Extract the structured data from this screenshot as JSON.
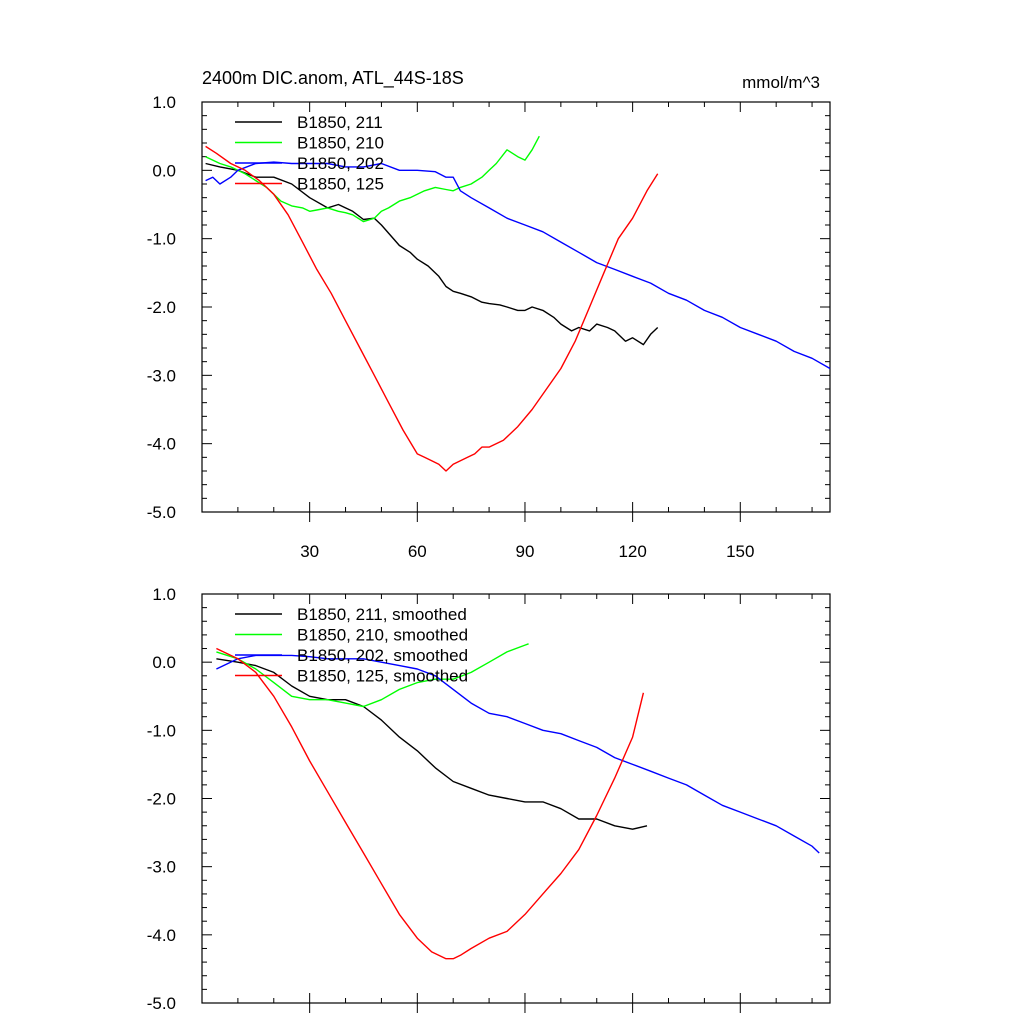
{
  "chart_data": [
    {
      "type": "line",
      "title": "2400m DIC.anom, ATL_44S-18S",
      "units_label": "mmol/m^3",
      "xlabel": "",
      "ylabel": "",
      "xlim": [
        0,
        175
      ],
      "ylim": [
        -5.0,
        1.0
      ],
      "x_ticks": [
        30,
        60,
        90,
        120,
        150
      ],
      "x_tick_labels": [
        "30",
        "60",
        "90",
        "120",
        "150"
      ],
      "show_x_tick_labels": true,
      "y_ticks": [
        -5.0,
        -4.0,
        -3.0,
        -2.0,
        -1.0,
        0.0,
        1.0
      ],
      "y_tick_labels": [
        "-5.0",
        "-4.0",
        "-3.0",
        "-2.0",
        "-1.0",
        "0.0",
        "1.0"
      ],
      "legend_position": "top-left",
      "series": [
        {
          "name": "B1850, 211",
          "color": "#000000",
          "x": [
            1,
            5,
            10,
            15,
            20,
            25,
            30,
            35,
            38,
            40,
            42,
            45,
            48,
            50,
            55,
            58,
            60,
            63,
            66,
            68,
            70,
            72,
            75,
            78,
            80,
            83,
            85,
            88,
            90,
            92,
            95,
            98,
            100,
            103,
            105,
            108,
            110,
            113,
            115,
            118,
            120,
            123,
            125,
            127
          ],
          "y": [
            0.1,
            0.05,
            0.0,
            -0.1,
            -0.1,
            -0.2,
            -0.4,
            -0.55,
            -0.5,
            -0.55,
            -0.6,
            -0.72,
            -0.7,
            -0.8,
            -1.1,
            -1.2,
            -1.3,
            -1.4,
            -1.55,
            -1.7,
            -1.77,
            -1.8,
            -1.85,
            -1.93,
            -1.95,
            -1.97,
            -2.0,
            -2.05,
            -2.05,
            -2.0,
            -2.05,
            -2.15,
            -2.25,
            -2.35,
            -2.3,
            -2.35,
            -2.25,
            -2.3,
            -2.35,
            -2.5,
            -2.45,
            -2.55,
            -2.4,
            -2.3
          ]
        },
        {
          "name": "B1850, 210",
          "color": "#00ff00",
          "x": [
            1,
            5,
            8,
            10,
            12,
            15,
            18,
            20,
            22,
            25,
            28,
            30,
            32,
            35,
            38,
            40,
            42,
            45,
            48,
            50,
            52,
            55,
            58,
            60,
            62,
            65,
            68,
            70,
            72,
            75,
            78,
            80,
            82,
            85,
            88,
            90,
            92,
            94
          ],
          "y": [
            0.2,
            0.1,
            0.05,
            0.0,
            -0.05,
            -0.15,
            -0.25,
            -0.35,
            -0.45,
            -0.52,
            -0.55,
            -0.6,
            -0.58,
            -0.55,
            -0.6,
            -0.62,
            -0.65,
            -0.75,
            -0.7,
            -0.6,
            -0.55,
            -0.45,
            -0.4,
            -0.35,
            -0.3,
            -0.25,
            -0.28,
            -0.3,
            -0.25,
            -0.2,
            -0.1,
            0.0,
            0.1,
            0.3,
            0.2,
            0.15,
            0.3,
            0.5
          ]
        },
        {
          "name": "B1850, 202",
          "color": "#0000ff",
          "x": [
            1,
            3,
            5,
            8,
            10,
            15,
            20,
            25,
            30,
            35,
            40,
            45,
            50,
            55,
            60,
            65,
            68,
            70,
            72,
            75,
            80,
            85,
            90,
            95,
            100,
            105,
            110,
            115,
            120,
            125,
            130,
            135,
            140,
            145,
            150,
            155,
            160,
            165,
            170,
            175
          ],
          "y": [
            -0.15,
            -0.1,
            -0.2,
            -0.1,
            0.0,
            0.1,
            0.12,
            0.1,
            0.1,
            0.1,
            0.05,
            0.05,
            0.1,
            0.0,
            0.0,
            -0.02,
            -0.1,
            -0.1,
            -0.3,
            -0.4,
            -0.55,
            -0.7,
            -0.8,
            -0.9,
            -1.05,
            -1.2,
            -1.35,
            -1.45,
            -1.55,
            -1.65,
            -1.8,
            -1.9,
            -2.05,
            -2.15,
            -2.3,
            -2.4,
            -2.5,
            -2.65,
            -2.75,
            -2.9
          ]
        },
        {
          "name": "B1850, 125",
          "color": "#ff0000",
          "x": [
            1,
            4,
            8,
            12,
            16,
            20,
            24,
            28,
            32,
            36,
            40,
            44,
            48,
            52,
            56,
            60,
            62,
            64,
            66,
            68,
            70,
            72,
            74,
            76,
            78,
            80,
            84,
            88,
            92,
            96,
            100,
            104,
            108,
            112,
            116,
            120,
            124,
            127
          ],
          "y": [
            0.35,
            0.25,
            0.1,
            0.0,
            -0.15,
            -0.35,
            -0.65,
            -1.05,
            -1.45,
            -1.8,
            -2.2,
            -2.6,
            -3.0,
            -3.4,
            -3.8,
            -4.15,
            -4.2,
            -4.25,
            -4.3,
            -4.4,
            -4.3,
            -4.25,
            -4.2,
            -4.15,
            -4.05,
            -4.05,
            -3.95,
            -3.75,
            -3.5,
            -3.2,
            -2.9,
            -2.5,
            -2.0,
            -1.5,
            -1.0,
            -0.7,
            -0.3,
            -0.05
          ]
        }
      ]
    },
    {
      "type": "line",
      "title": "",
      "xlim": [
        0,
        175
      ],
      "ylim": [
        -5.0,
        1.0
      ],
      "x_ticks": [
        30,
        60,
        90,
        120,
        150
      ],
      "x_tick_labels": [
        "30",
        "60",
        "90",
        "120",
        "150"
      ],
      "show_x_tick_labels": false,
      "y_ticks": [
        -5.0,
        -4.0,
        -3.0,
        -2.0,
        -1.0,
        0.0,
        1.0
      ],
      "y_tick_labels": [
        "-5.0",
        "-4.0",
        "-3.0",
        "-2.0",
        "-1.0",
        "0.0",
        "1.0"
      ],
      "legend_position": "top-left",
      "series": [
        {
          "name": "B1850, 211, smoothed",
          "color": "#000000",
          "x": [
            4,
            10,
            15,
            20,
            25,
            30,
            35,
            40,
            45,
            50,
            55,
            60,
            65,
            70,
            75,
            80,
            85,
            90,
            95,
            100,
            105,
            110,
            115,
            120,
            124
          ],
          "y": [
            0.05,
            0.0,
            -0.05,
            -0.15,
            -0.35,
            -0.5,
            -0.55,
            -0.55,
            -0.65,
            -0.85,
            -1.1,
            -1.3,
            -1.55,
            -1.75,
            -1.85,
            -1.95,
            -2.0,
            -2.05,
            -2.05,
            -2.15,
            -2.3,
            -2.3,
            -2.4,
            -2.45,
            -2.4
          ]
        },
        {
          "name": "B1850, 210, smoothed",
          "color": "#00ff00",
          "x": [
            4,
            10,
            15,
            20,
            25,
            30,
            35,
            40,
            45,
            50,
            55,
            60,
            65,
            70,
            75,
            80,
            85,
            90,
            91
          ],
          "y": [
            0.15,
            0.05,
            -0.1,
            -0.3,
            -0.5,
            -0.55,
            -0.55,
            -0.6,
            -0.65,
            -0.55,
            -0.4,
            -0.3,
            -0.25,
            -0.25,
            -0.15,
            0.0,
            0.15,
            0.25,
            0.27
          ]
        },
        {
          "name": "B1850, 202, smoothed",
          "color": "#0000ff",
          "x": [
            4,
            10,
            15,
            20,
            25,
            30,
            35,
            40,
            45,
            50,
            55,
            60,
            65,
            70,
            75,
            80,
            85,
            90,
            95,
            100,
            105,
            110,
            115,
            120,
            125,
            130,
            135,
            140,
            145,
            150,
            155,
            160,
            165,
            170,
            172
          ],
          "y": [
            -0.1,
            0.05,
            0.1,
            0.1,
            0.1,
            0.08,
            0.05,
            0.05,
            0.05,
            0.0,
            -0.05,
            -0.1,
            -0.2,
            -0.4,
            -0.6,
            -0.75,
            -0.8,
            -0.9,
            -1.0,
            -1.05,
            -1.15,
            -1.25,
            -1.4,
            -1.5,
            -1.6,
            -1.7,
            -1.8,
            -1.95,
            -2.1,
            -2.2,
            -2.3,
            -2.4,
            -2.55,
            -2.7,
            -2.8
          ]
        },
        {
          "name": "B1850, 125, smoothed",
          "color": "#ff0000",
          "x": [
            4,
            10,
            15,
            20,
            25,
            30,
            35,
            40,
            45,
            50,
            55,
            60,
            64,
            68,
            70,
            72,
            75,
            80,
            85,
            90,
            95,
            100,
            105,
            110,
            115,
            120,
            123
          ],
          "y": [
            0.2,
            0.05,
            -0.15,
            -0.5,
            -0.95,
            -1.45,
            -1.9,
            -2.35,
            -2.8,
            -3.25,
            -3.7,
            -4.05,
            -4.25,
            -4.35,
            -4.35,
            -4.3,
            -4.2,
            -4.05,
            -3.95,
            -3.7,
            -3.4,
            -3.1,
            -2.75,
            -2.25,
            -1.7,
            -1.1,
            -0.45
          ]
        }
      ]
    }
  ]
}
